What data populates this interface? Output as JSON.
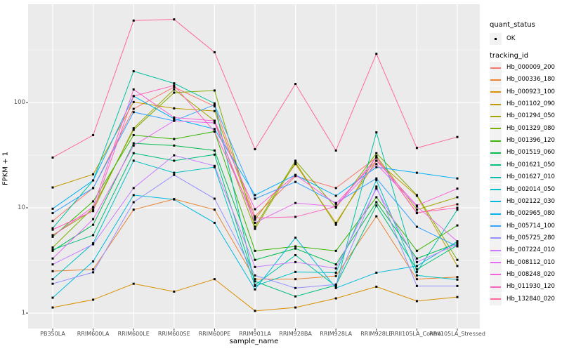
{
  "colors": {
    "panel_bg": "#EBEBEB",
    "grid": "#FFFFFF",
    "point": "#000000",
    "tick_text": "#4D4D4D",
    "axis_tick": "#333333",
    "legend_key_bg": "#F2F2F2"
  },
  "legend": {
    "quant_status_title": "quant_status",
    "quant_status_value": "OK",
    "tracking_id_title": "tracking_id"
  },
  "chart_data": {
    "type": "line",
    "title": "",
    "xlabel": "sample_name",
    "ylabel": "FPKM + 1",
    "y_scale": "log10",
    "ylim": [
      0.85,
      860
    ],
    "y_ticks": [
      1,
      10,
      100
    ],
    "y_tick_labels": [
      "1",
      "10",
      "100"
    ],
    "y_minor_gridlines": [
      3.162,
      31.62,
      316.2
    ],
    "grid": true,
    "legend_position": "right",
    "point_shape": "small-black-square",
    "categories": [
      "PB350LA",
      "RRIM600LA",
      "RRIM600LE",
      "RRIM600SE",
      "RRIM600PE",
      "RRIM901LA",
      "RRIM928BA",
      "RRIM928LA",
      "RRIM928LE",
      "RRII105LA_Control",
      "RRII105LA_Stressed"
    ],
    "series": [
      {
        "name": "Hb_000009_200",
        "color": "#F8766D",
        "values": [
          7.5,
          15.4,
          87,
          140,
          92,
          8.3,
          20,
          15.4,
          30,
          8.9,
          10.8
        ]
      },
      {
        "name": "Hb_000336_180",
        "color": "#EA8331",
        "values": [
          2.5,
          2.6,
          9.6,
          12.1,
          9.6,
          2.1,
          2.1,
          2.25,
          8.3,
          2.1,
          2.2
        ]
      },
      {
        "name": "Hb_000923_100",
        "color": "#D89000",
        "values": [
          1.13,
          1.34,
          1.9,
          1.6,
          2.1,
          1.05,
          1.13,
          1.38,
          1.78,
          1.3,
          1.42
        ]
      },
      {
        "name": "Hb_001102_090",
        "color": "#C09B00",
        "values": [
          15.6,
          20.8,
          101,
          88,
          83,
          7.7,
          26,
          7.2,
          28,
          13,
          2.8
        ]
      },
      {
        "name": "Hb_001294_050",
        "color": "#A3A500",
        "values": [
          5.5,
          9.5,
          57,
          133,
          67,
          6.3,
          27,
          6.9,
          31,
          9.6,
          12.6
        ]
      },
      {
        "name": "Hb_001329_080",
        "color": "#7CAE00",
        "values": [
          4.2,
          10,
          55,
          124,
          130,
          6.6,
          28,
          10,
          33,
          13.2,
          3.2
        ]
      },
      {
        "name": "Hb_001396_120",
        "color": "#39B600",
        "values": [
          5.3,
          11.5,
          49,
          45,
          53,
          3.9,
          4.3,
          3.9,
          12.6,
          3.9,
          6.8
        ]
      },
      {
        "name": "Hb_001519_060",
        "color": "#00BB4E",
        "values": [
          3.9,
          6.9,
          41,
          39,
          35,
          3.2,
          4.1,
          2.9,
          11.3,
          3.3,
          4.6
        ]
      },
      {
        "name": "Hb_001621_050",
        "color": "#00BF7D",
        "values": [
          4.0,
          5.5,
          33,
          28,
          32,
          2.0,
          1.44,
          1.84,
          10.5,
          2.6,
          4.4
        ]
      },
      {
        "name": "Hb_001627_010",
        "color": "#00C1A3",
        "values": [
          6.4,
          18.2,
          198,
          152,
          98,
          1.85,
          3.55,
          1.8,
          52,
          2.46,
          9.6
        ]
      },
      {
        "name": "Hb_002014_050",
        "color": "#00BFC4",
        "values": [
          2.1,
          4.6,
          28,
          21.5,
          24.3,
          1.81,
          2.46,
          2.42,
          18.3,
          2.28,
          2.08
        ]
      },
      {
        "name": "Hb_002122_030",
        "color": "#00BADE",
        "values": [
          1.4,
          3.1,
          13.2,
          12,
          7.2,
          1.68,
          5.2,
          1.73,
          2.42,
          2.8,
          4.8
        ]
      },
      {
        "name": "Hb_002965_080",
        "color": "#00B0F6",
        "values": [
          9.8,
          18.2,
          115,
          70,
          56,
          13.2,
          20.5,
          13,
          24.3,
          21.5,
          19
        ]
      },
      {
        "name": "Hb_005714_100",
        "color": "#35A2FF",
        "values": [
          8.9,
          15.4,
          81,
          67,
          95,
          12.2,
          17.6,
          11.1,
          19,
          6.6,
          4.3
        ]
      },
      {
        "name": "Hb_005725_280",
        "color": "#9590FF",
        "values": [
          1.9,
          2.44,
          11.3,
          20.5,
          12.2,
          2.28,
          1.73,
          1.87,
          15.9,
          1.81,
          1.81
        ]
      },
      {
        "name": "Hb_007224_010",
        "color": "#C77CFF",
        "values": [
          2.9,
          4.5,
          15.4,
          31.5,
          25,
          2.74,
          3.05,
          2.66,
          15.2,
          3.05,
          4.5
        ]
      },
      {
        "name": "Hb_008112_010",
        "color": "#E76BF3",
        "values": [
          3.3,
          7.8,
          39,
          67,
          64,
          7.2,
          11.1,
          10.3,
          26,
          10.3,
          4.8
        ]
      },
      {
        "name": "Hb_008248_020",
        "color": "#FA62DB",
        "values": [
          5.4,
          10.2,
          133,
          72,
          67,
          9.7,
          20.5,
          10.9,
          28,
          10.5,
          15.2
        ]
      },
      {
        "name": "Hb_011930_120",
        "color": "#FF62BC",
        "values": [
          6.2,
          9.3,
          115,
          145,
          53,
          8.0,
          8.2,
          10.3,
          30,
          9.0,
          10.0
        ]
      },
      {
        "name": "Hb_132840_020",
        "color": "#FF6A98",
        "values": [
          30,
          49,
          600,
          615,
          300,
          36,
          150,
          35,
          290,
          37,
          47
        ]
      }
    ]
  }
}
